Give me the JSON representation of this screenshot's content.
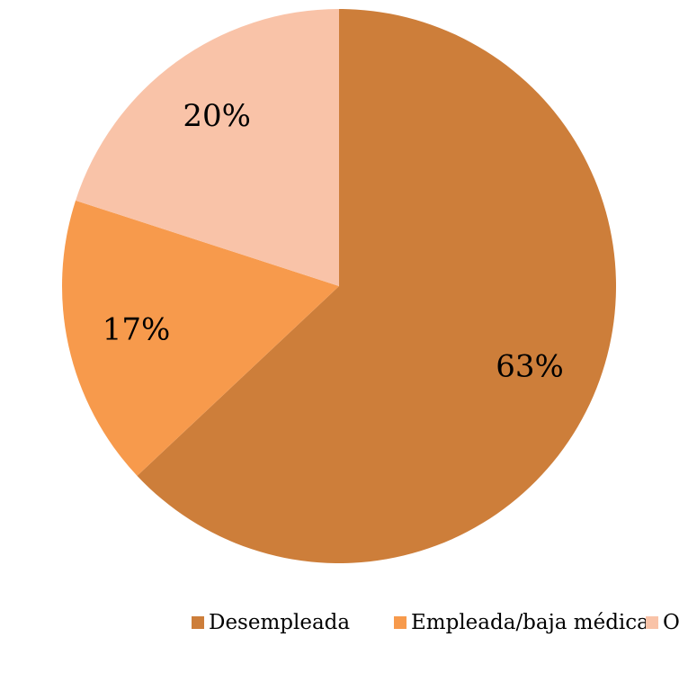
{
  "chart_data": {
    "type": "pie",
    "categories": [
      "Desempleada",
      "Empleada/baja médica",
      "Otros"
    ],
    "values": [
      63,
      17,
      20
    ],
    "value_labels": [
      "63%",
      "17%",
      "20%"
    ],
    "colors": [
      "#cd7e3a",
      "#f79a4c",
      "#f9c3a8"
    ],
    "legend": "bottom"
  }
}
